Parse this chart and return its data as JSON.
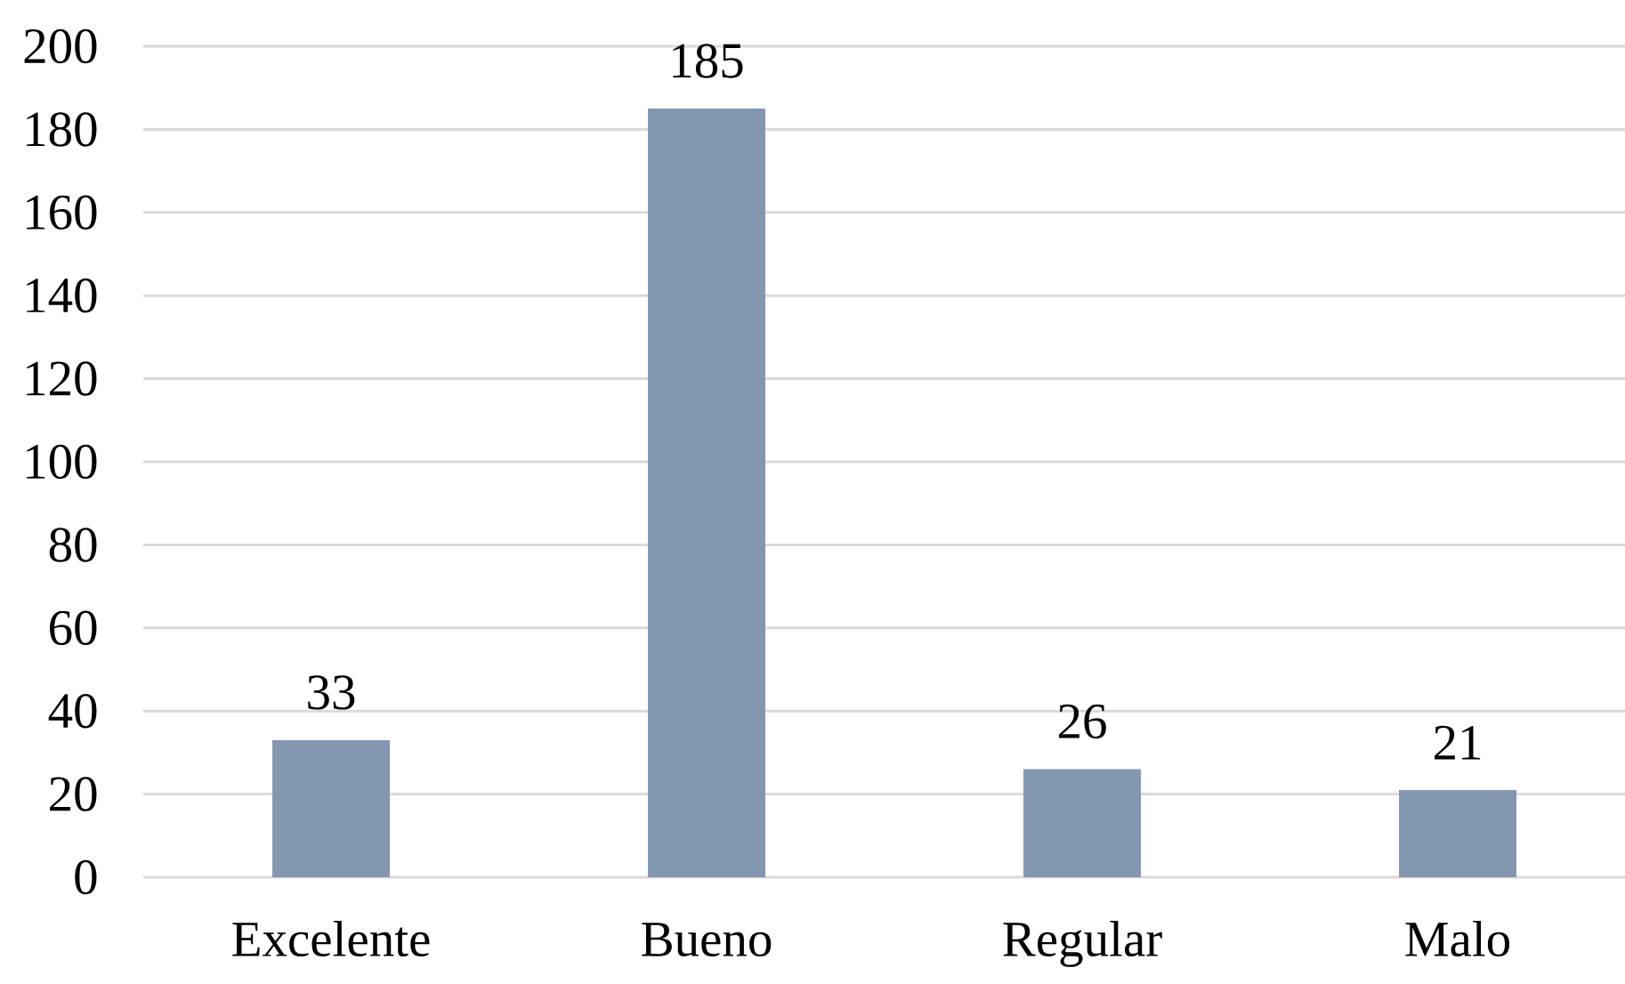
{
  "chart_data": {
    "type": "bar",
    "categories": [
      "Excelente",
      "Bueno",
      "Regular",
      "Malo"
    ],
    "values": [
      33,
      185,
      26,
      21
    ],
    "color": "#8497b0",
    "ylim": [
      0,
      200
    ],
    "yticks": [
      0,
      20,
      40,
      60,
      80,
      100,
      120,
      140,
      160,
      180,
      200
    ],
    "grid": "y",
    "data_labels": true
  }
}
